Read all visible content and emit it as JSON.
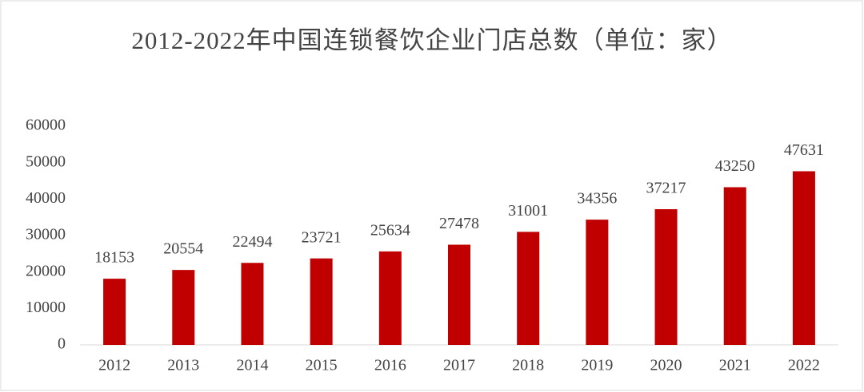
{
  "chart_data": {
    "type": "bar",
    "title": "2012-2022年中国连锁餐饮企业门店总数（单位：家）",
    "categories": [
      "2012",
      "2013",
      "2014",
      "2015",
      "2016",
      "2017",
      "2018",
      "2019",
      "2020",
      "2021",
      "2022"
    ],
    "values": [
      18153,
      20554,
      22494,
      23721,
      25634,
      27478,
      31001,
      34356,
      37217,
      43250,
      47631
    ],
    "color": "#c00000",
    "ylim": [
      0,
      60000
    ],
    "yticks": [
      0,
      10000,
      20000,
      30000,
      40000,
      50000,
      60000
    ],
    "grid": false
  }
}
